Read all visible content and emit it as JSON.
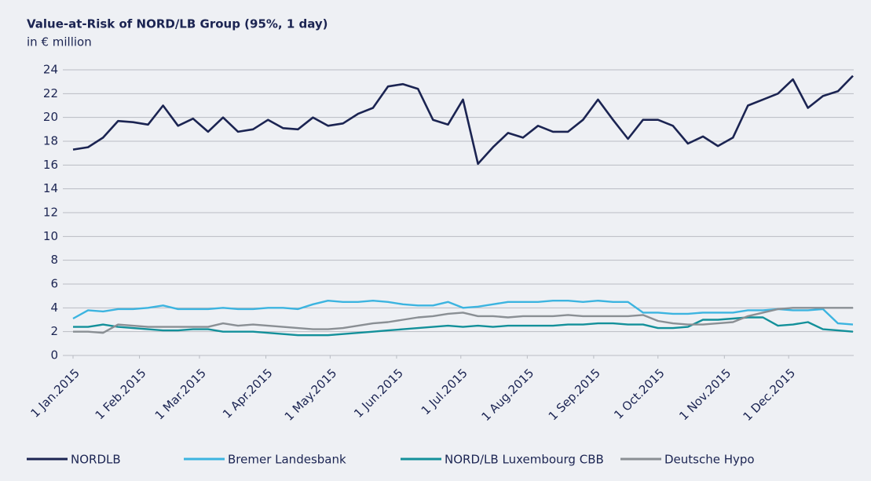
{
  "chart_data": {
    "type": "line",
    "title": "Value-at-Risk of NORD/LB Group (95%, 1 day)",
    "subtitle": "in € million",
    "x": [
      "2015-01-01",
      "2015-01-08",
      "2015-01-15",
      "2015-01-22",
      "2015-01-29",
      "2015-02-05",
      "2015-02-12",
      "2015-02-19",
      "2015-02-26",
      "2015-03-05",
      "2015-03-12",
      "2015-03-19",
      "2015-03-26",
      "2015-04-02",
      "2015-04-09",
      "2015-04-16",
      "2015-04-23",
      "2015-04-30",
      "2015-05-07",
      "2015-05-14",
      "2015-05-21",
      "2015-05-28",
      "2015-06-04",
      "2015-06-11",
      "2015-06-18",
      "2015-06-25",
      "2015-07-02",
      "2015-07-09",
      "2015-07-16",
      "2015-07-23",
      "2015-07-30",
      "2015-08-06",
      "2015-08-13",
      "2015-08-20",
      "2015-08-27",
      "2015-09-03",
      "2015-09-10",
      "2015-09-17",
      "2015-09-24",
      "2015-10-01",
      "2015-10-08",
      "2015-10-15",
      "2015-10-22",
      "2015-10-29",
      "2015-11-05",
      "2015-11-12",
      "2015-11-19",
      "2015-11-26",
      "2015-12-03",
      "2015-12-10",
      "2015-12-17",
      "2015-12-24",
      "2015-12-31"
    ],
    "series": [
      {
        "name": "NORDLB",
        "color": "#1b2452",
        "values": [
          17.3,
          17.5,
          18.3,
          19.7,
          19.6,
          19.4,
          21.0,
          19.3,
          19.9,
          18.8,
          20.0,
          18.8,
          19.0,
          19.8,
          19.1,
          19.0,
          20.0,
          19.3,
          19.5,
          20.3,
          20.8,
          22.6,
          22.8,
          22.4,
          19.8,
          19.4,
          21.5,
          16.1,
          17.5,
          18.7,
          18.3,
          19.3,
          18.8,
          18.8,
          19.8,
          21.5,
          19.8,
          18.2,
          19.8,
          19.8,
          19.3,
          17.8,
          18.4,
          17.6,
          18.3,
          21.0,
          21.5,
          22.0,
          23.2,
          20.8,
          21.8,
          22.2,
          23.5
        ]
      },
      {
        "name": "Bremer Landesbank",
        "color": "#3cb4e0",
        "values": [
          3.1,
          3.8,
          3.7,
          3.9,
          3.9,
          4.0,
          4.2,
          3.9,
          3.9,
          3.9,
          4.0,
          3.9,
          3.9,
          4.0,
          4.0,
          3.9,
          4.3,
          4.6,
          4.5,
          4.5,
          4.6,
          4.5,
          4.3,
          4.2,
          4.2,
          4.5,
          4.0,
          4.1,
          4.3,
          4.5,
          4.5,
          4.5,
          4.6,
          4.6,
          4.5,
          4.6,
          4.5,
          4.5,
          3.6,
          3.6,
          3.5,
          3.5,
          3.6,
          3.6,
          3.6,
          3.8,
          3.8,
          3.9,
          3.8,
          3.8,
          3.9,
          2.7,
          2.6
        ]
      },
      {
        "name": "NORD/LB Luxembourg CBB",
        "color": "#13909a",
        "values": [
          2.4,
          2.4,
          2.6,
          2.4,
          2.3,
          2.2,
          2.1,
          2.1,
          2.2,
          2.2,
          2.0,
          2.0,
          2.0,
          1.9,
          1.8,
          1.7,
          1.7,
          1.7,
          1.8,
          1.9,
          2.0,
          2.1,
          2.2,
          2.3,
          2.4,
          2.5,
          2.4,
          2.5,
          2.4,
          2.5,
          2.5,
          2.5,
          2.5,
          2.6,
          2.6,
          2.7,
          2.7,
          2.6,
          2.6,
          2.3,
          2.3,
          2.4,
          3.0,
          3.0,
          3.1,
          3.2,
          3.2,
          2.5,
          2.6,
          2.8,
          2.2,
          2.1,
          2.0
        ]
      },
      {
        "name": "Deutsche Hypo",
        "color": "#8a8f94",
        "values": [
          2.0,
          2.0,
          1.9,
          2.6,
          2.5,
          2.4,
          2.4,
          2.4,
          2.4,
          2.4,
          2.7,
          2.5,
          2.6,
          2.5,
          2.4,
          2.3,
          2.2,
          2.2,
          2.3,
          2.5,
          2.7,
          2.8,
          3.0,
          3.2,
          3.3,
          3.5,
          3.6,
          3.3,
          3.3,
          3.2,
          3.3,
          3.3,
          3.3,
          3.4,
          3.3,
          3.3,
          3.3,
          3.3,
          3.4,
          2.9,
          2.7,
          2.6,
          2.6,
          2.7,
          2.8,
          3.3,
          3.6,
          3.9,
          4.0,
          4.0,
          4.0,
          4.0,
          4.0
        ]
      }
    ],
    "xlim": [
      "2015-01-01",
      "2015-12-31"
    ],
    "xticks": [
      {
        "value": "2015-01-01",
        "label": "1 Jan.2015"
      },
      {
        "value": "2015-02-01",
        "label": "1 Feb.2015"
      },
      {
        "value": "2015-03-01",
        "label": "1 Mar.2015"
      },
      {
        "value": "2015-04-01",
        "label": "1 Apr.2015"
      },
      {
        "value": "2015-05-01",
        "label": "1 May.2015"
      },
      {
        "value": "2015-06-01",
        "label": "1 Jun.2015"
      },
      {
        "value": "2015-07-01",
        "label": "1 Jul.2015"
      },
      {
        "value": "2015-08-01",
        "label": "1 Aug.2015"
      },
      {
        "value": "2015-09-01",
        "label": "1 Sep.2015"
      },
      {
        "value": "2015-10-01",
        "label": "1 Oct.2015"
      },
      {
        "value": "2015-11-01",
        "label": "1 Nov.2015"
      },
      {
        "value": "2015-12-01",
        "label": "1 Dec.2015"
      }
    ],
    "ylim": [
      0,
      24
    ],
    "yticks": [
      0,
      2,
      4,
      6,
      8,
      10,
      12,
      14,
      16,
      18,
      20,
      22,
      24
    ],
    "grid": true,
    "legend": "bottom"
  }
}
